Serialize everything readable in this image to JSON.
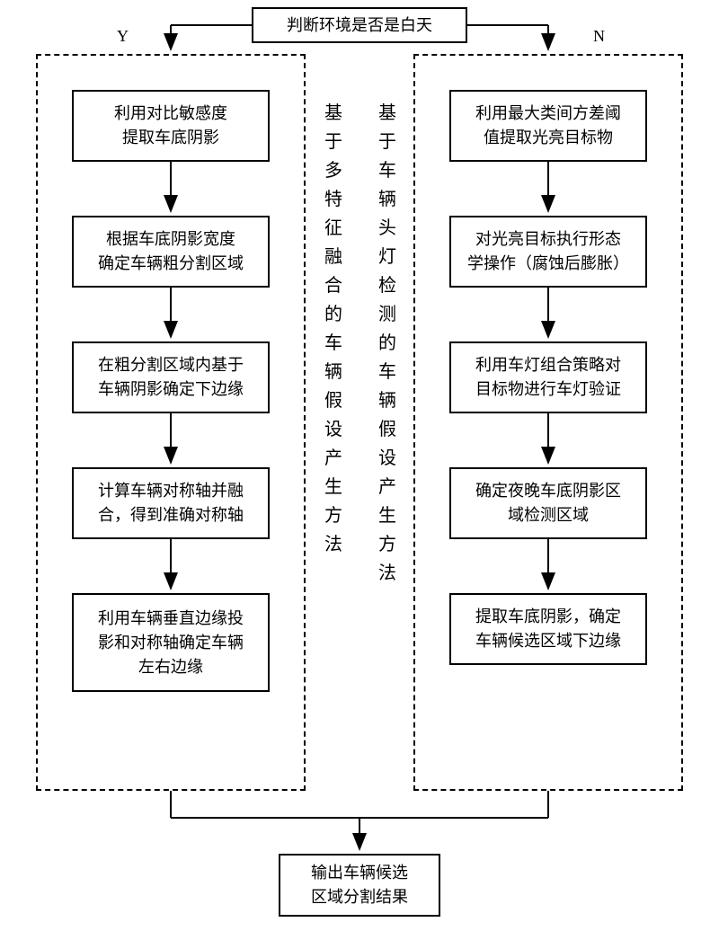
{
  "top": {
    "title": "判断环境是否是白天",
    "yes": "Y",
    "no": "N"
  },
  "left": {
    "label": "基于多特征融合的车辆假设产生方法",
    "steps": [
      "利用对比敏感度\n提取车底阴影",
      "根据车底阴影宽度\n确定车辆粗分割区域",
      "在粗分割区域内基于\n车辆阴影确定下边缘",
      "计算车辆对称轴并融\n合，得到准确对称轴",
      "利用车辆垂直边缘投\n影和对称轴确定车辆\n左右边缘"
    ]
  },
  "right": {
    "label": "基于车辆头灯检测的车辆假设产生方法",
    "steps": [
      "利用最大类间方差阈\n值提取光亮目标物",
      "对光亮目标执行形态\n学操作（腐蚀后膨胀）",
      "利用车灯组合策略对\n目标物进行车灯验证",
      "确定夜晚车底阴影区\n域检测区域",
      "提取车底阴影，确定\n车辆候选区域下边缘"
    ]
  },
  "bottom": {
    "text": "输出车辆候选\n区域分割结果"
  },
  "style": {
    "bg": "#ffffff",
    "stroke": "#000000",
    "fontsize_box": 18,
    "fontsize_label": 20
  }
}
